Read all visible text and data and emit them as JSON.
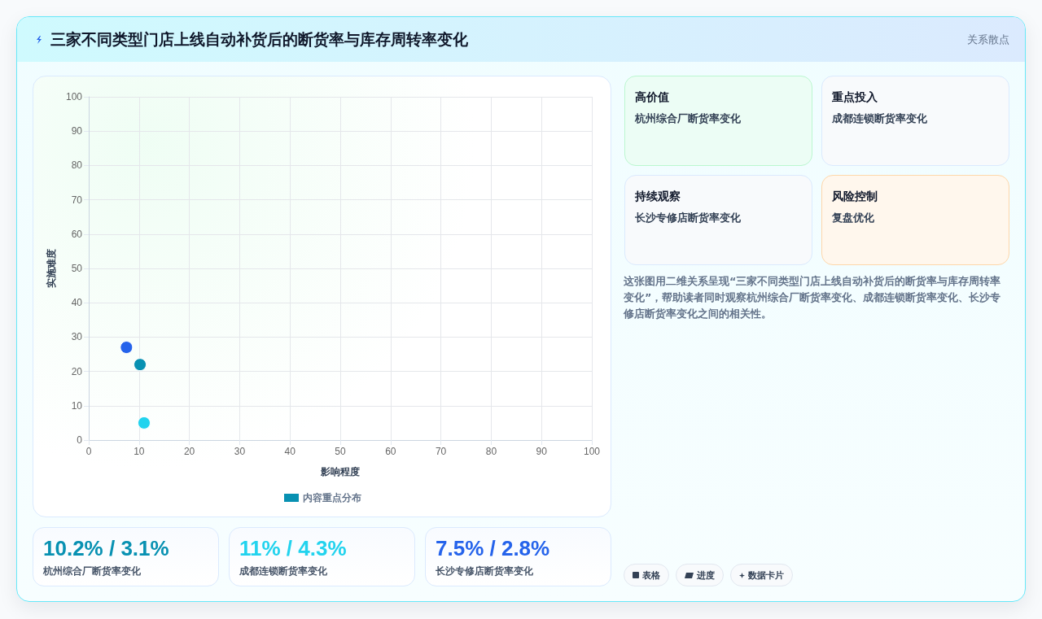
{
  "chart_data": [
    {
      "type": "scatter",
      "title": "三家不同类型门店上线自动补货后的断货率与库存周转率变化",
      "xlabel": "影响程度",
      "ylabel": "实施难度",
      "xlim": [
        0,
        100
      ],
      "ylim": [
        0,
        100
      ],
      "xticks": [
        0,
        10,
        20,
        30,
        40,
        50,
        60,
        70,
        80,
        90,
        100
      ],
      "yticks": [
        0,
        10,
        20,
        30,
        40,
        50,
        60,
        70,
        80,
        90,
        100
      ],
      "grid": true,
      "legend": "bottom",
      "marker": "circle",
      "series": [
        {
          "name": "内容重点分布",
          "color": "#0891b2",
          "colors": [
            "#0891b2",
            "#22d3ee",
            "#2563eb"
          ],
          "x": [
            10.2,
            11,
            7.5
          ],
          "values": [
            22,
            5,
            27
          ]
        }
      ]
    },
    {
      "type": "other",
      "title": "关系散点",
      "annotations": [
        "高价值",
        "杭州综合厂断货率变化",
        "重点投入",
        "成都连锁断货率变化",
        "持续观察",
        "长沙专修店断货率变化",
        "风险控制",
        "复盘优化",
        "这张图用二维关系呈现“三家不同类型门店上线自动补货后的断货率与库存周转率变化”，帮助读者同时观察杭州综合厂断货率变化、成都连锁断货率变化、长沙专修店断货率变化之间的相关性。",
        "表格",
        "进度",
        "数据卡片"
      ]
    },
    {
      "type": "other",
      "annotations": [
        "10.2% / 3.1%",
        "杭州综合厂断货率变化",
        "11% / 4.3%",
        "成都连锁断货率变化",
        "7.5% / 2.8%",
        "长沙专修店断货率变化"
      ],
      "colors": [
        "#0891b2",
        "#22d3ee",
        "#2563eb"
      ]
    }
  ]
}
